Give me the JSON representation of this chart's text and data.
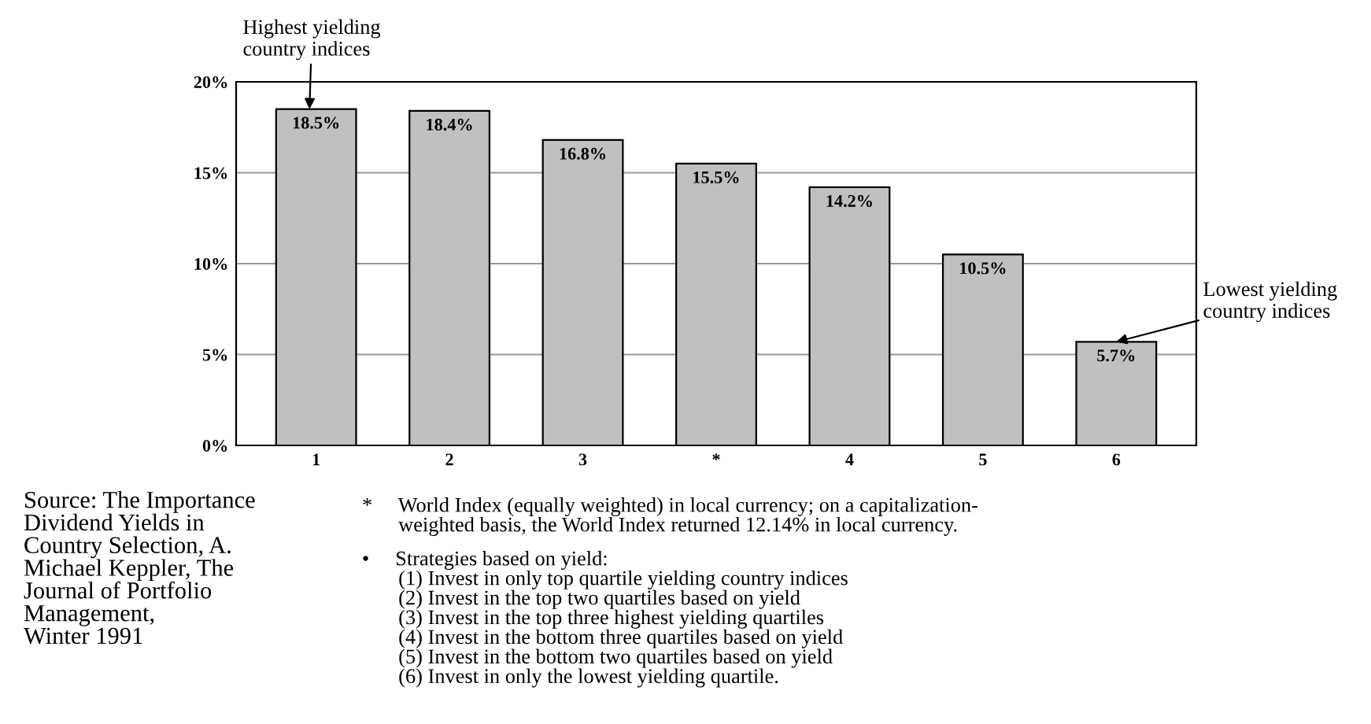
{
  "chart_data": {
    "type": "bar",
    "categories": [
      "1",
      "2",
      "3",
      "*",
      "4",
      "5",
      "6"
    ],
    "values": [
      18.5,
      18.4,
      16.8,
      15.5,
      14.2,
      10.5,
      5.7
    ],
    "value_labels": [
      "18.5%",
      "18.4%",
      "16.8%",
      "15.5%",
      "14.2%",
      "10.5%",
      "5.7%"
    ],
    "color": "#c0c0c0",
    "ylim": [
      0,
      20
    ],
    "yticks": [
      {
        "value": 0,
        "label": "0%"
      },
      {
        "value": 5,
        "label": "5%"
      },
      {
        "value": 10,
        "label": "10%"
      },
      {
        "value": 15,
        "label": "15%"
      },
      {
        "value": 20,
        "label": "20%"
      }
    ],
    "grid": "y",
    "annotations": [
      {
        "text": "Highest yielding\ncountry indices",
        "x": "1",
        "y": 18.5
      },
      {
        "text": "Lowest yielding\ncountry indices",
        "x": "6",
        "y": 5.7
      },
      "Source: The Importance\nDividend Yields in\nCountry Selection, A.\nMichael Keppler, The\nJournal of Portfolio\nManagement,\nWinter 1991",
      "*     World Index (equally weighted) in local currency; on a capitalization-\n       weighted basis, the World Index returned 12.14% in local currency.",
      "•     Strategies based on yield:\n       (1) Invest in only top quartile yielding country indices\n       (2) Invest in the top two quartiles based on yield\n       (3) Invest in the top three highest yielding quartiles\n       (4) Invest in the bottom three quartiles based on yield\n       (5) Invest in the bottom two quartiles based on yield\n       (6) Invest in only the lowest yielding quartile."
    ]
  }
}
